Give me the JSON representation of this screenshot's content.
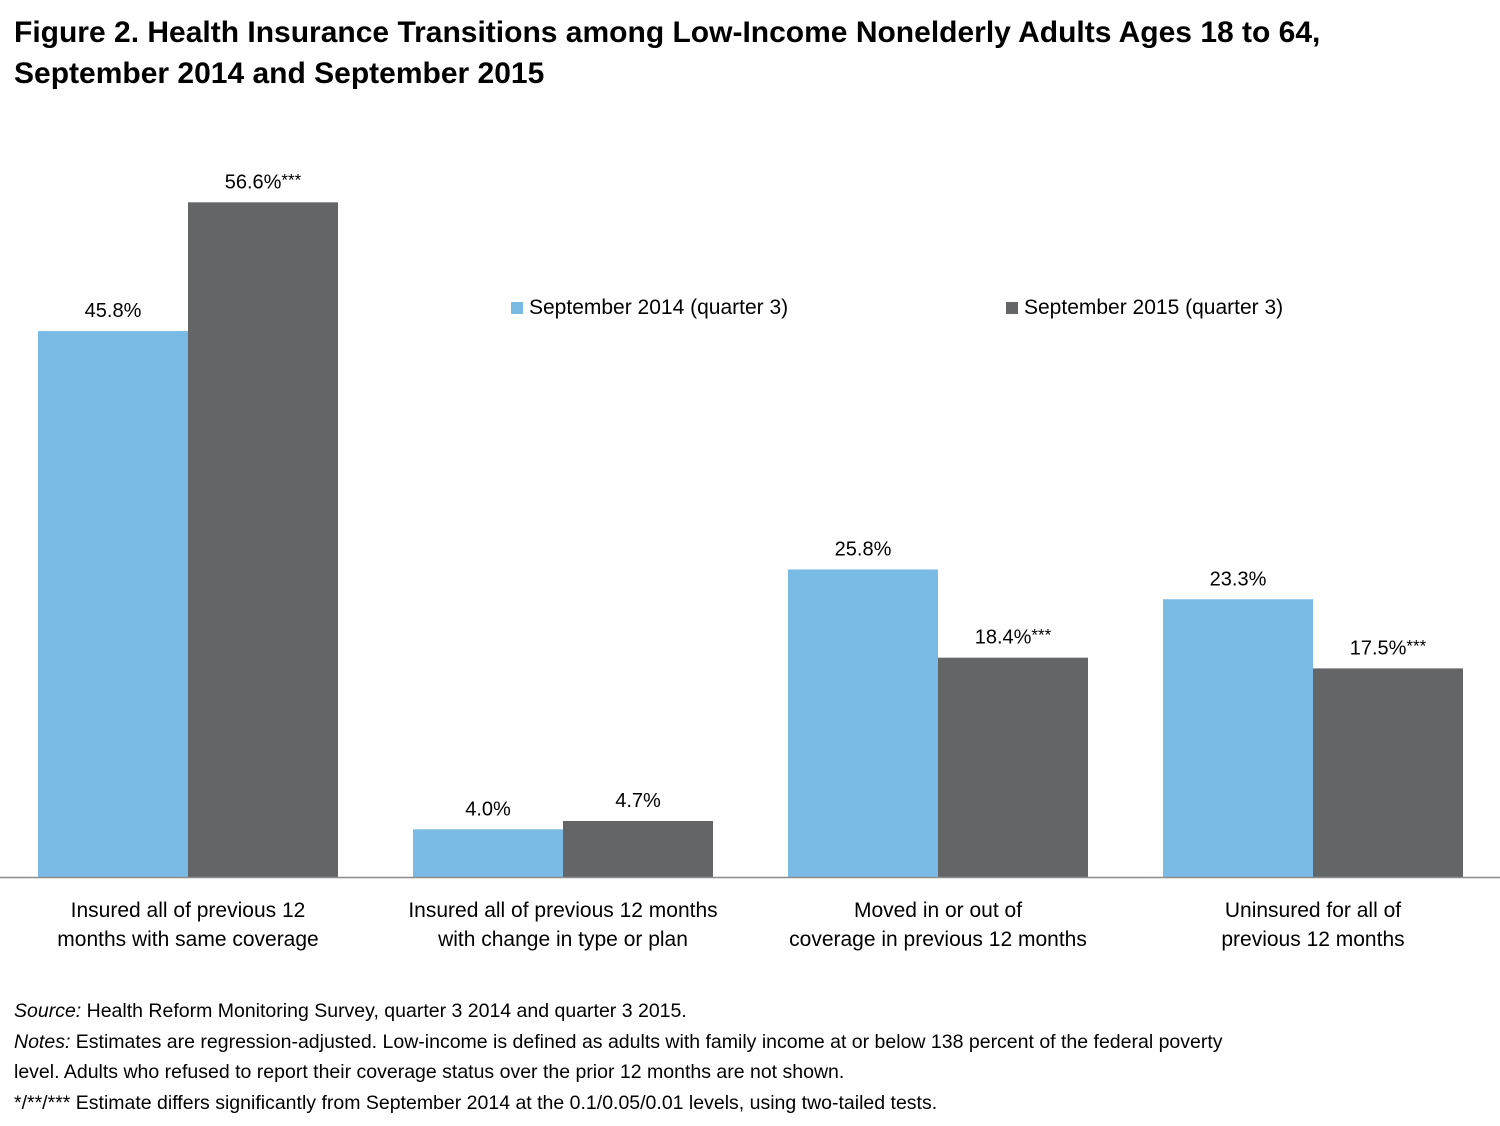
{
  "title": {
    "line1": "Figure 2. Health Insurance Transitions among Low-Income Nonelderly Adults Ages 18 to 64,",
    "line2": "September 2014 and September 2015"
  },
  "colors": {
    "series_2014": "#79bbe4",
    "series_2015": "#646567",
    "axis": "#8c8c8c"
  },
  "chart_data": {
    "type": "bar",
    "categories": [
      [
        "Insured all of previous 12",
        "months with same coverage"
      ],
      [
        "Insured all of previous 12 months",
        "with change in type or plan"
      ],
      [
        "Moved in or out of",
        "coverage in previous 12 months"
      ],
      [
        "Uninsured for all of",
        "previous 12 months"
      ]
    ],
    "series": [
      {
        "name": "September 2014 (quarter 3)",
        "values": [
          45.8,
          4.0,
          25.8,
          23.3
        ],
        "labels": [
          "45.8%",
          "4.0%",
          "25.8%",
          "23.3%"
        ]
      },
      {
        "name": "September 2015 (quarter 3)",
        "values": [
          56.6,
          4.7,
          18.4,
          17.5
        ],
        "labels": [
          "56.6%***",
          "4.7%",
          "18.4%***",
          "17.5%***"
        ]
      }
    ],
    "legend_position": "top-right",
    "grid": false
  },
  "notes": {
    "source_label": "Source:",
    "source_text": " Health Reform Monitoring Survey, quarter 3 2014 and quarter 3 2015.",
    "notes_label": "Notes:",
    "notes_line1": " Estimates are regression-adjusted.  Low-income is defined as adults with family income at or below 138 percent of the federal poverty",
    "notes_line2": "level. Adults who refused to report their coverage status over the prior 12 months are not shown.",
    "significance": "*/**/***  Estimate differs significantly from September 2014 at the 0.1/0.05/0.01 levels, using two-tailed tests."
  }
}
